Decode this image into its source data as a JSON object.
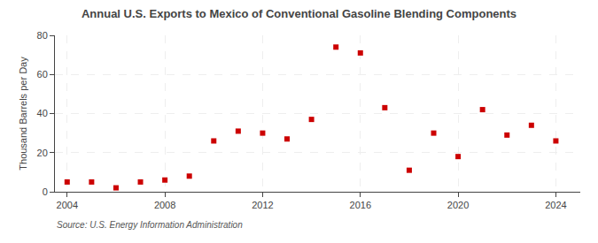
{
  "chart_data": {
    "type": "scatter",
    "title": "Annual U.S. Exports to Mexico of Conventional Gasoline Blending Components",
    "ylabel": "Thousand Barrels per Day",
    "annotations": [
      "Source: U.S. Energy Information Administration"
    ],
    "x": [
      2004,
      2005,
      2006,
      2007,
      2008,
      2009,
      2010,
      2011,
      2012,
      2013,
      2014,
      2015,
      2016,
      2017,
      2018,
      2019,
      2020,
      2021,
      2022,
      2023,
      2024
    ],
    "values": [
      5,
      5,
      2,
      5,
      6,
      8,
      26,
      31,
      30,
      27,
      37,
      74,
      71,
      43,
      11,
      30,
      18,
      42,
      29,
      34,
      26
    ],
    "color": "#cc0000",
    "marker": "square",
    "xlim": [
      2003.5,
      2025
    ],
    "ylim": [
      0,
      80
    ],
    "xticks": [
      2004,
      2008,
      2012,
      2016,
      2020,
      2024
    ],
    "yticks": [
      0,
      20,
      40,
      60,
      80
    ],
    "grid": true
  }
}
